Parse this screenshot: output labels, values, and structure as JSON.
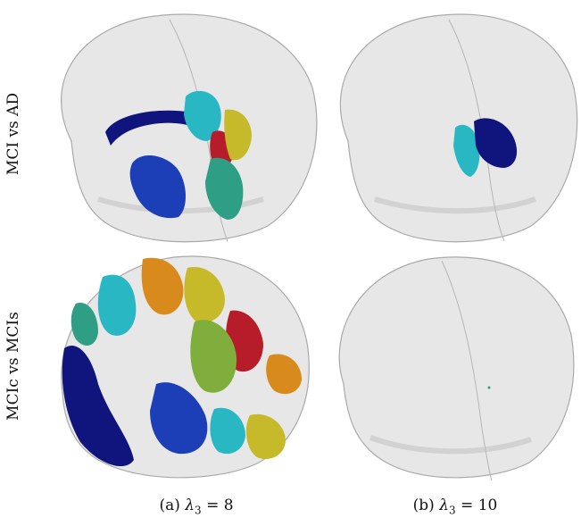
{
  "rows": [
    {
      "label": "MCI vs AD"
    },
    {
      "label": "MCIc vs MCIs"
    }
  ],
  "captions": [
    {
      "prefix": "(a) ",
      "symbol": "λ",
      "subscript": "3",
      "suffix": " = 8"
    },
    {
      "prefix": "(b) ",
      "symbol": "λ",
      "subscript": "3",
      "suffix": " = 10"
    }
  ],
  "colors": {
    "shell": "#d3d3d3",
    "shell_edge": "#a9a9a9",
    "navy": "#10157e",
    "blue": "#1c3fb8",
    "cyan": "#29b7c4",
    "teal": "#2e9f85",
    "yellow": "#c6b92a",
    "orange": "#d98a1c",
    "red": "#b71c2a",
    "green": "#7fae3c"
  }
}
